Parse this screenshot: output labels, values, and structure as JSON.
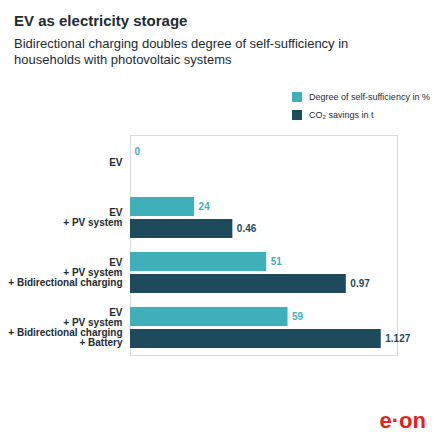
{
  "chart_data": {
    "type": "bar",
    "title": "EV as electricity storage",
    "subtitle": "Bidirectional charging doubles degree of self-sufficiency in households with photovoltaic systems",
    "orientation": "horizontal",
    "categories": [
      "EV",
      "EV\n+ PV system",
      "EV\n+ PV system\n+ Bidirectional charging",
      "EV\n+ PV system\n+ Bidirectional charging\n+ Battery"
    ],
    "series": [
      {
        "name": "Degree of self-sufficiency in %",
        "color": "#3fb0ba",
        "values": [
          0,
          24,
          51,
          59
        ]
      },
      {
        "name": "CO₂ savings in t",
        "color": "#1d4b5c",
        "values": [
          null,
          0.46,
          0.97,
          1.127
        ],
        "axis": "y2"
      }
    ],
    "ylim": [
      0,
      100
    ],
    "y2lim": [
      0,
      1.2
    ],
    "data_labels": true,
    "tick_labels": "x",
    "legend": "top-right",
    "annotations": [
      "e·on"
    ]
  }
}
